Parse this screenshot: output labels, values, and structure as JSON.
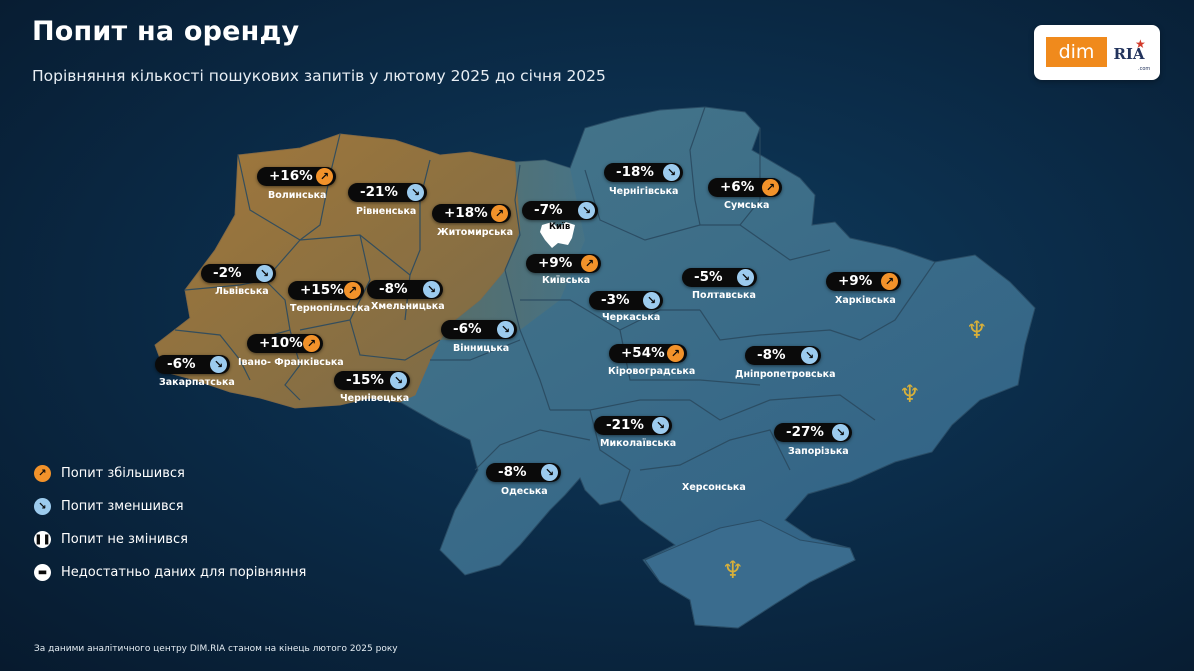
{
  "title": "Попит на оренду",
  "subtitle": "Порівняння кількості пошукових запитів у лютому 2025 до січня 2025",
  "logo": {
    "left": "dim",
    "right": "RIA",
    "domain": ".com"
  },
  "colors": {
    "increase": "#f2922a",
    "decrease": "#9ccbee",
    "warm_region": "#9c6f38",
    "cool_region": "#3f6d85"
  },
  "regions": [
    {
      "id": "volynska",
      "name": "Волинська",
      "value": "+16%",
      "trend": "up"
    },
    {
      "id": "rivnenska",
      "name": "Рівненська",
      "value": "-21%",
      "trend": "down"
    },
    {
      "id": "zhytomyrska",
      "name": "Житомирська",
      "value": "+18%",
      "trend": "up"
    },
    {
      "id": "kyiv",
      "name": "Київ",
      "value": "-7%",
      "trend": "down"
    },
    {
      "id": "chernihivska",
      "name": "Чернігівська",
      "value": "-18%",
      "trend": "down"
    },
    {
      "id": "sumska",
      "name": "Сумська",
      "value": "+6%",
      "trend": "up"
    },
    {
      "id": "lvivska",
      "name": "Львівська",
      "value": "-2%",
      "trend": "down"
    },
    {
      "id": "ternopilska",
      "name": "Тернопільська",
      "value": "+15%",
      "trend": "up"
    },
    {
      "id": "khmelnytska",
      "name": "Хмельницька",
      "value": "-8%",
      "trend": "down"
    },
    {
      "id": "kyivska",
      "name": "Київська",
      "value": "+9%",
      "trend": "up"
    },
    {
      "id": "poltavska",
      "name": "Полтавська",
      "value": "-5%",
      "trend": "down"
    },
    {
      "id": "kharkivska",
      "name": "Харківська",
      "value": "+9%",
      "trend": "up"
    },
    {
      "id": "cherkaska",
      "name": "Черкаська",
      "value": "-3%",
      "trend": "down"
    },
    {
      "id": "ivano",
      "name": "Івано- Франківська",
      "value": "+10%",
      "trend": "up"
    },
    {
      "id": "vinnytska",
      "name": "Вінницька",
      "value": "-6%",
      "trend": "down"
    },
    {
      "id": "zakarpatska",
      "name": "Закарпатська",
      "value": "-6%",
      "trend": "down"
    },
    {
      "id": "kirovohradska",
      "name": "Кіровоградська",
      "value": "+54%",
      "trend": "up"
    },
    {
      "id": "dnipro",
      "name": "Дніпропетровська",
      "value": "-8%",
      "trend": "down"
    },
    {
      "id": "chernivetska",
      "name": "Чернівецька",
      "value": "-15%",
      "trend": "down"
    },
    {
      "id": "mykolaivska",
      "name": "Миколаївська",
      "value": "-21%",
      "trend": "down"
    },
    {
      "id": "zaporizka",
      "name": "Запорізька",
      "value": "-27%",
      "trend": "down"
    },
    {
      "id": "odeska",
      "name": "Одеська",
      "value": "-8%",
      "trend": "down"
    },
    {
      "id": "khersonska",
      "name": "Херсонська",
      "value": "",
      "trend": "none"
    }
  ],
  "legend": [
    {
      "label": "Попит збільшився",
      "icon": "up-arrow-icon"
    },
    {
      "label": "Попит зменшився",
      "icon": "down-arrow-icon"
    },
    {
      "label": "Попит не змінився",
      "icon": "pause-icon"
    },
    {
      "label": "Недостатньо даних для порівняння",
      "icon": "minus-icon"
    }
  ],
  "footer": "За даними аналітичного центру DIM.RIA станом на кінець лютого 2025 року"
}
